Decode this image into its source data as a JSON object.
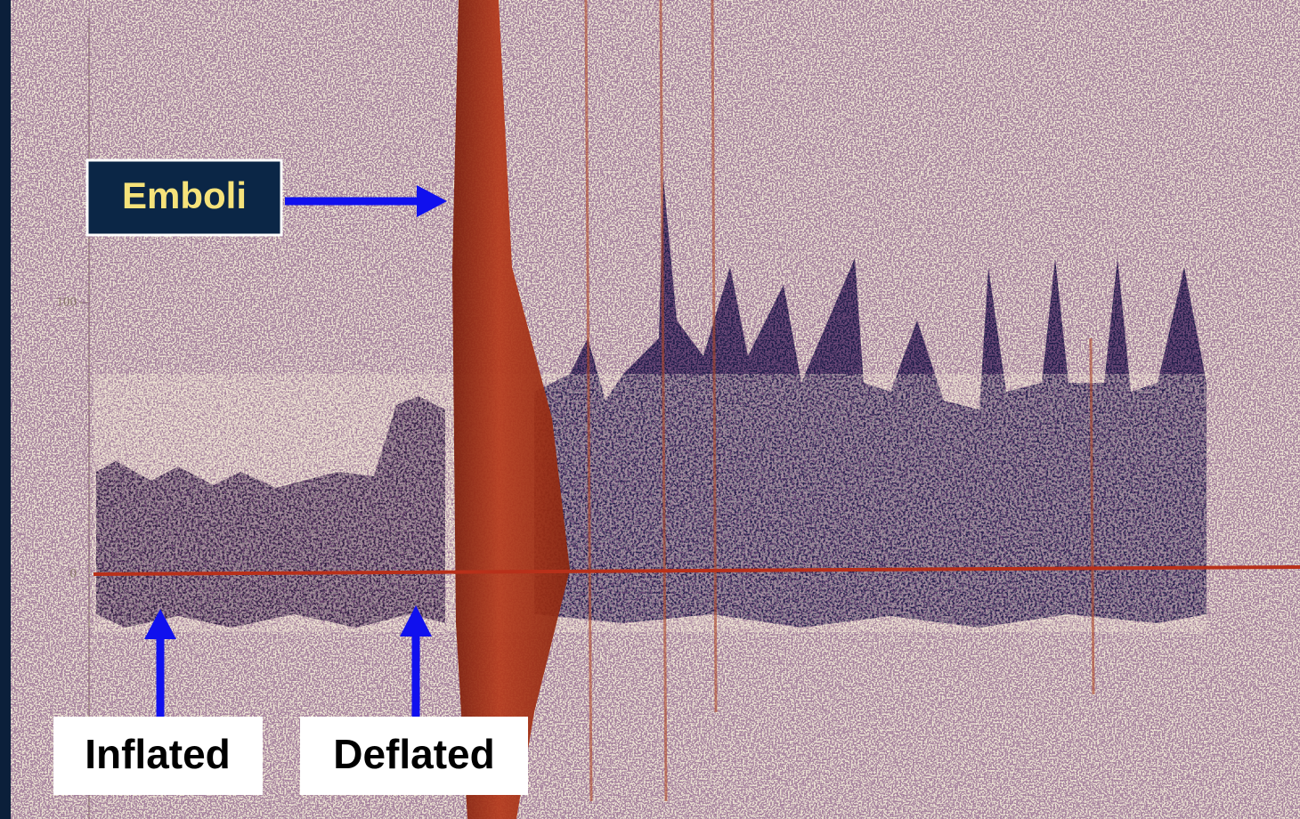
{
  "image": {
    "y_axis_labels": [
      "100",
      "0"
    ]
  },
  "annotations": {
    "emboli": "Emboli",
    "inflated": "Inflated",
    "deflated": "Deflated"
  }
}
